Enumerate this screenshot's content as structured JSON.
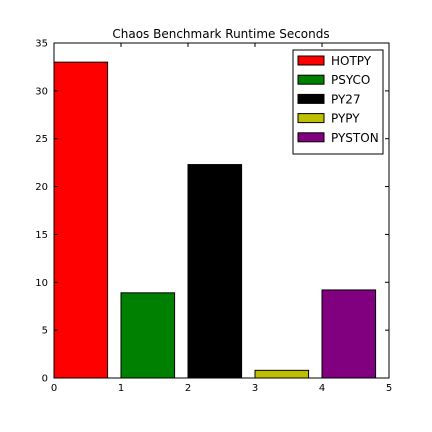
{
  "chart_data": {
    "type": "bar",
    "title": "Chaos Benchmark Runtime Seconds",
    "xlabel": "",
    "ylabel": "",
    "xlim": [
      0,
      5
    ],
    "ylim": [
      0,
      35
    ],
    "xticks": [
      "0",
      "1",
      "2",
      "3",
      "4",
      "5"
    ],
    "yticks": [
      "0",
      "5",
      "10",
      "15",
      "20",
      "25",
      "30",
      "35"
    ],
    "grid": false,
    "legend_position": "top-right",
    "bar_width": 0.8,
    "series": [
      {
        "name": "HOTPY",
        "x": 0,
        "value": 33.0,
        "color": "#ff0000"
      },
      {
        "name": "PSYCO",
        "x": 1,
        "value": 8.9,
        "color": "#008000"
      },
      {
        "name": "PY27",
        "x": 2,
        "value": 22.3,
        "color": "#000000"
      },
      {
        "name": "PYPY",
        "x": 3,
        "value": 0.8,
        "color": "#bfbf00"
      },
      {
        "name": "PYSTON",
        "x": 4,
        "value": 9.2,
        "color": "#800080"
      }
    ]
  }
}
